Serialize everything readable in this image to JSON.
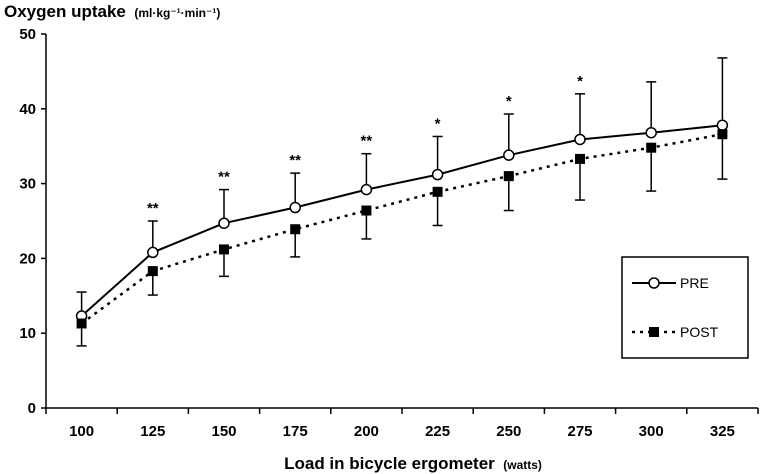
{
  "chart_data": {
    "type": "line",
    "title": "Oxygen uptake",
    "title_unit": "(ml·kg⁻¹·min⁻¹)",
    "xlabel": "Load in bicycle ergometer",
    "xlabel_unit": "(watts)",
    "ylabel": "Oxygen uptake",
    "ylim": [
      0,
      50
    ],
    "yticks": [
      0,
      10,
      20,
      30,
      40,
      50
    ],
    "categories": [
      "100",
      "125",
      "150",
      "175",
      "200",
      "225",
      "250",
      "275",
      "300",
      "325"
    ],
    "series": [
      {
        "name": "PRE",
        "marker": "open-circle",
        "line": "solid",
        "values": [
          12.3,
          20.8,
          24.7,
          26.8,
          29.2,
          31.2,
          33.8,
          35.9,
          36.8,
          37.8
        ],
        "err_high": [
          15.5,
          25.0,
          29.2,
          31.4,
          34.0,
          36.3,
          39.3,
          42.0,
          43.6,
          46.8
        ],
        "err_low": [
          12.3,
          20.8,
          24.7,
          26.8,
          29.2,
          31.2,
          33.8,
          35.9,
          36.8,
          37.8
        ]
      },
      {
        "name": "POST",
        "marker": "filled-square",
        "line": "dotted",
        "values": [
          11.3,
          18.3,
          21.2,
          23.9,
          26.4,
          28.9,
          31.0,
          33.3,
          34.8,
          36.6
        ],
        "err_high": [
          11.3,
          18.3,
          21.2,
          23.9,
          26.4,
          28.9,
          31.0,
          33.3,
          34.8,
          36.6
        ],
        "err_low": [
          8.3,
          15.1,
          17.6,
          20.2,
          22.6,
          24.4,
          26.4,
          27.8,
          29.0,
          30.6
        ]
      }
    ],
    "significance": [
      "",
      "**",
      "**",
      "**",
      "**",
      "*",
      "*",
      "*",
      "",
      ""
    ],
    "legend": {
      "entries": [
        "PRE",
        "POST"
      ],
      "placement": "right"
    },
    "grid": false
  }
}
